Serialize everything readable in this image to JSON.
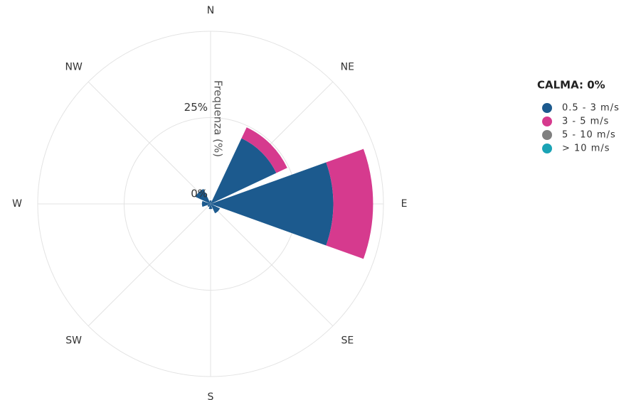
{
  "chart_data": {
    "type": "windrose",
    "categories": [
      "N",
      "NE",
      "E",
      "SE",
      "S",
      "SW",
      "W",
      "NW"
    ],
    "series": [
      {
        "name": "0.5 - 3 m/s",
        "color": "#1c5a8e",
        "values": [
          1,
          21,
          35.5,
          3,
          1.5,
          1,
          2.5,
          4.8
        ]
      },
      {
        "name": "3 - 5 m/s",
        "color": "#d63a8e",
        "values": [
          0,
          3.5,
          11.5,
          0,
          0,
          0,
          0,
          0
        ]
      },
      {
        "name": "5 - 10 m/s",
        "color": "#7f7f7f",
        "values": [
          0,
          0,
          0,
          0,
          0,
          0,
          0,
          0
        ]
      },
      {
        "name": "> 10 m/s",
        "color": "#1aa3b5",
        "values": [
          0,
          0,
          0,
          0,
          0,
          0,
          0,
          0
        ]
      }
    ],
    "rlim": [
      0,
      50
    ],
    "rticks": [
      {
        "value": 0,
        "label": "0%"
      },
      {
        "value": 25,
        "label": "25%"
      }
    ],
    "radial_axis_label": "Frequenza (%)",
    "legend_title": "CALMA: 0%",
    "legend": "right",
    "grid": true
  }
}
